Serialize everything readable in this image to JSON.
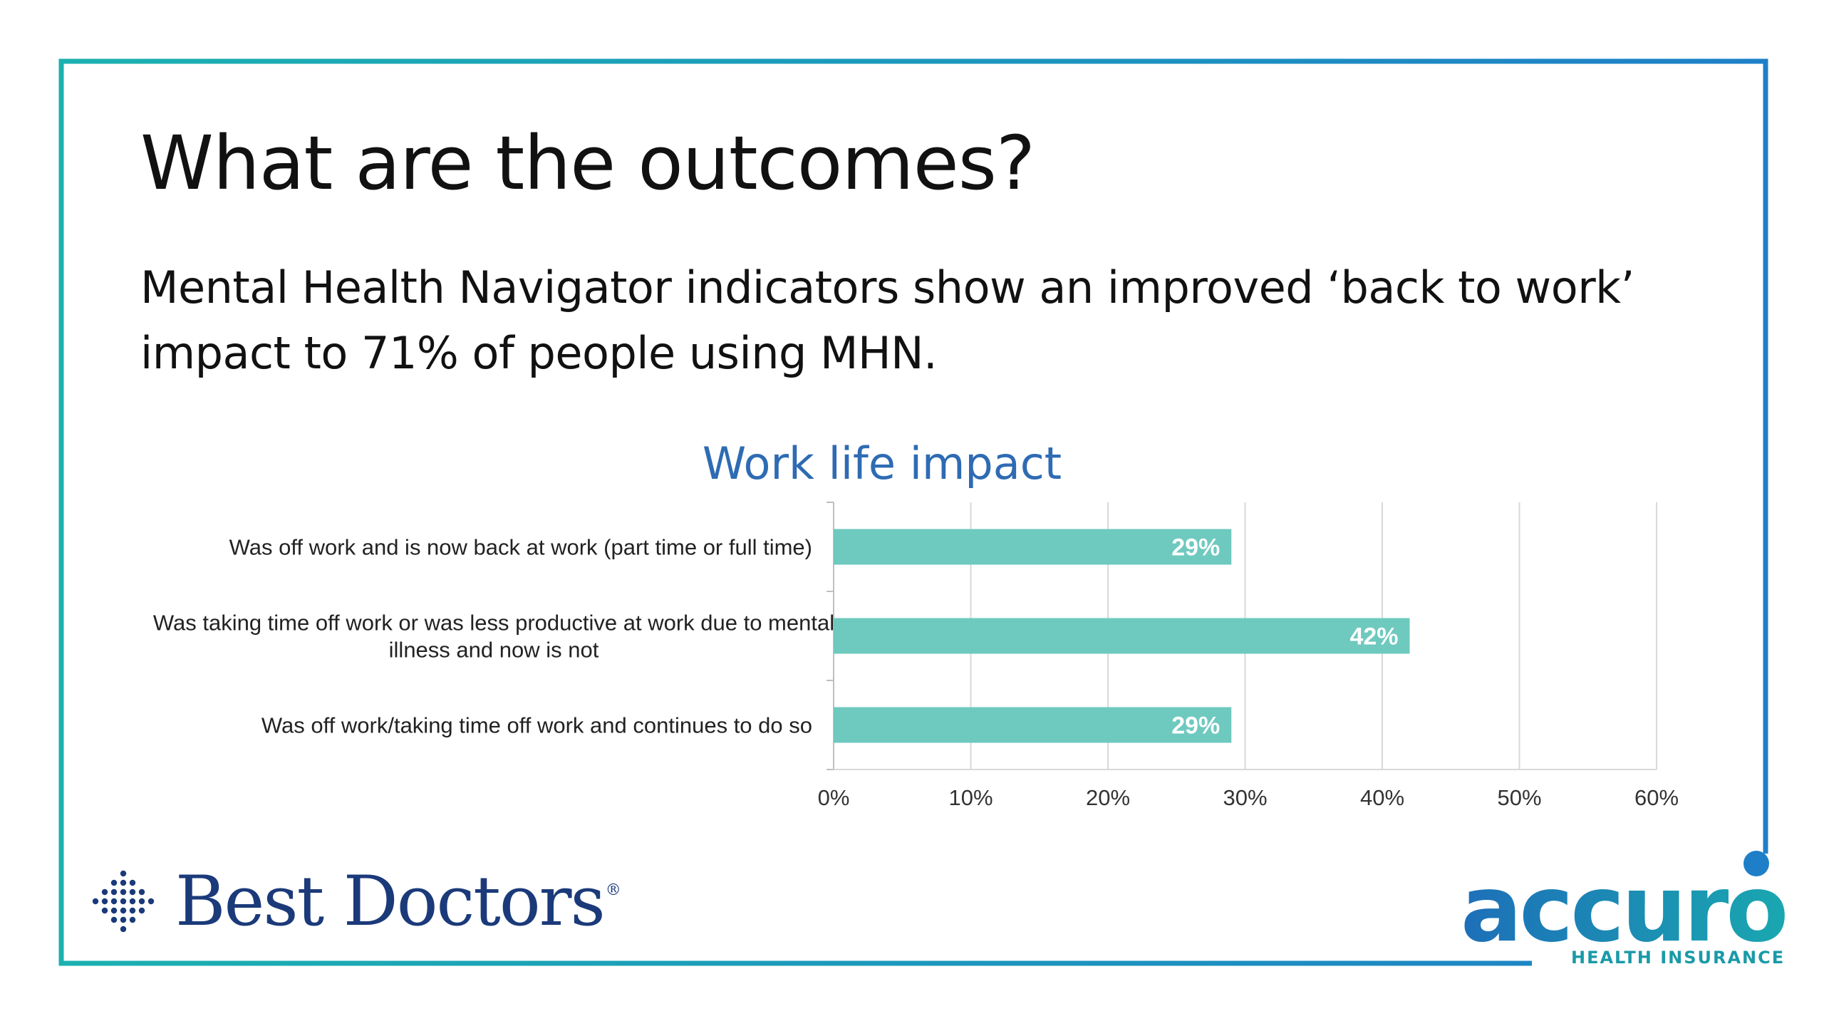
{
  "slide": {
    "title": "What are the outcomes?",
    "subtitle": "Mental Health Navigator indicators show an improved ‘back to work’ impact to 71% of people using MHN."
  },
  "colors": {
    "frame_start": "#1bb1b0",
    "frame_end": "#1e7fc8",
    "bar": "#6ec9bf",
    "chart_title": "#2e6bb3",
    "gridline": "#d9d9d9",
    "bar_label": "#ffffff"
  },
  "logos": {
    "left": {
      "text": "Best Doctors",
      "icon": "cross-dots-icon"
    },
    "right": {
      "text": "accuro",
      "subtext": "HEALTH INSURANCE"
    }
  },
  "chart_data": {
    "type": "bar",
    "orientation": "horizontal",
    "title": "Work life impact",
    "categories": [
      "Was off work and is now back at work (part time or full time)",
      "Was taking time off work or was less productive at work due to mental illness and now is not",
      "Was off work/taking time off work and continues to do so"
    ],
    "category_lines": [
      [
        "Was off work and is now back at work (part time or full time)"
      ],
      [
        "Was taking time off work or was less productive at work due to mental",
        "illness and now is not"
      ],
      [
        "Was off work/taking time off work and continues to do so"
      ]
    ],
    "values": [
      29,
      42,
      29
    ],
    "data_labels": [
      "29%",
      "42%",
      "29%"
    ],
    "xlim": [
      0,
      60
    ],
    "xticks": [
      0,
      10,
      20,
      30,
      40,
      50,
      60
    ],
    "xtick_labels": [
      "0%",
      "10%",
      "20%",
      "30%",
      "40%",
      "50%",
      "60%"
    ],
    "grid": true,
    "legend": "none"
  }
}
